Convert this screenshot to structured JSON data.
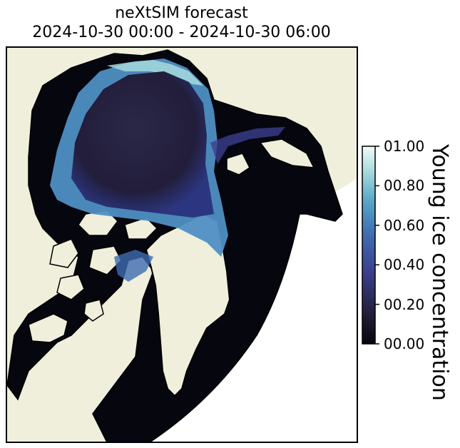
{
  "title": {
    "line1": "neXtSIM forecast",
    "line2": "2024-10-30 00:00 - 2024-10-30 06:00"
  },
  "colorbar": {
    "label": "Young ice concentration",
    "ticks": [
      "00.00",
      "00.20",
      "00.40",
      "00.60",
      "00.80",
      "01.00"
    ],
    "range": [
      0,
      1
    ],
    "colormap": [
      "#06050d",
      "#25223f",
      "#3a3f8c",
      "#3f6bb1",
      "#54a6c9",
      "#a6dadd",
      "#f2fbfb"
    ]
  },
  "colors": {
    "land": "#efefdc",
    "open_water": "#06060f",
    "coastline": "#000000",
    "no_data": "#ffffff"
  }
}
